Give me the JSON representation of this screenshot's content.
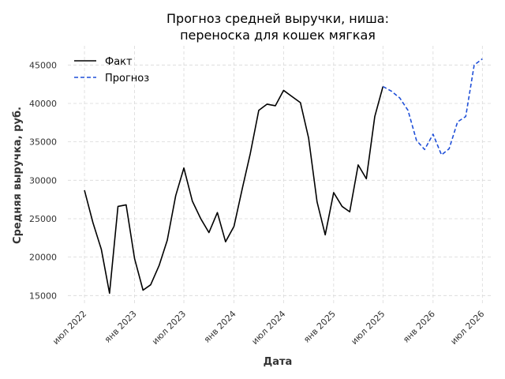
{
  "chart_data": {
    "type": "line",
    "title_lines": [
      "Прогноз средней выручки, ниша:",
      "переноска для кошек мягкая"
    ],
    "xlabel": "Дата",
    "ylabel": "Средняя выручка, руб.",
    "x_range": [
      "2022-05-01",
      "2026-08-01"
    ],
    "ylim": [
      13800,
      47500
    ],
    "y_ticks": [
      15000,
      20000,
      25000,
      30000,
      35000,
      40000,
      45000
    ],
    "x_ticks": [
      {
        "date": "2022-07-01",
        "label": "июл 2022"
      },
      {
        "date": "2023-01-01",
        "label": "янв 2023"
      },
      {
        "date": "2023-07-01",
        "label": "июл 2023"
      },
      {
        "date": "2024-01-01",
        "label": "янв 2024"
      },
      {
        "date": "2024-07-01",
        "label": "июл 2024"
      },
      {
        "date": "2025-01-01",
        "label": "янв 2025"
      },
      {
        "date": "2025-07-01",
        "label": "июл 2025"
      },
      {
        "date": "2026-01-01",
        "label": "янв 2026"
      },
      {
        "date": "2026-07-01",
        "label": "июл 2026"
      }
    ],
    "grid": true,
    "legend_position": "top-left",
    "series": [
      {
        "name": "Факт",
        "color": "#000000",
        "style": "solid",
        "points": [
          [
            "2022-07-01",
            28700
          ],
          [
            "2022-08-01",
            24500
          ],
          [
            "2022-09-01",
            21000
          ],
          [
            "2022-10-01",
            15300
          ],
          [
            "2022-11-01",
            26600
          ],
          [
            "2022-12-01",
            26800
          ],
          [
            "2023-01-01",
            19800
          ],
          [
            "2023-02-01",
            15700
          ],
          [
            "2023-03-01",
            16400
          ],
          [
            "2023-04-01",
            18900
          ],
          [
            "2023-05-01",
            22200
          ],
          [
            "2023-06-01",
            28000
          ],
          [
            "2023-07-01",
            31600
          ],
          [
            "2023-08-01",
            27300
          ],
          [
            "2023-09-01",
            25000
          ],
          [
            "2023-10-01",
            23200
          ],
          [
            "2023-11-01",
            25800
          ],
          [
            "2023-12-01",
            22000
          ],
          [
            "2024-01-01",
            24000
          ],
          [
            "2024-02-01",
            29000
          ],
          [
            "2024-03-01",
            33500
          ],
          [
            "2024-04-01",
            39100
          ],
          [
            "2024-05-01",
            39900
          ],
          [
            "2024-06-01",
            39700
          ],
          [
            "2024-07-01",
            41700
          ],
          [
            "2024-08-01",
            40900
          ],
          [
            "2024-09-01",
            40100
          ],
          [
            "2024-10-01",
            35500
          ],
          [
            "2024-11-01",
            27200
          ],
          [
            "2024-12-01",
            22900
          ],
          [
            "2025-01-01",
            28400
          ],
          [
            "2025-02-01",
            26600
          ],
          [
            "2025-03-01",
            25900
          ],
          [
            "2025-04-01",
            32000
          ],
          [
            "2025-05-01",
            30200
          ],
          [
            "2025-06-01",
            38300
          ],
          [
            "2025-07-01",
            42200
          ]
        ]
      },
      {
        "name": "Прогноз",
        "color": "#1f4fd8",
        "style": "dashed",
        "points": [
          [
            "2025-07-01",
            42200
          ],
          [
            "2025-08-01",
            41600
          ],
          [
            "2025-09-01",
            40700
          ],
          [
            "2025-10-01",
            39100
          ],
          [
            "2025-11-01",
            35200
          ],
          [
            "2025-12-01",
            34000
          ],
          [
            "2026-01-01",
            36000
          ],
          [
            "2026-02-01",
            33300
          ],
          [
            "2026-03-01",
            34100
          ],
          [
            "2026-04-01",
            37600
          ],
          [
            "2026-05-01",
            38300
          ],
          [
            "2026-06-01",
            45000
          ],
          [
            "2026-07-01",
            45800
          ]
        ]
      }
    ]
  }
}
